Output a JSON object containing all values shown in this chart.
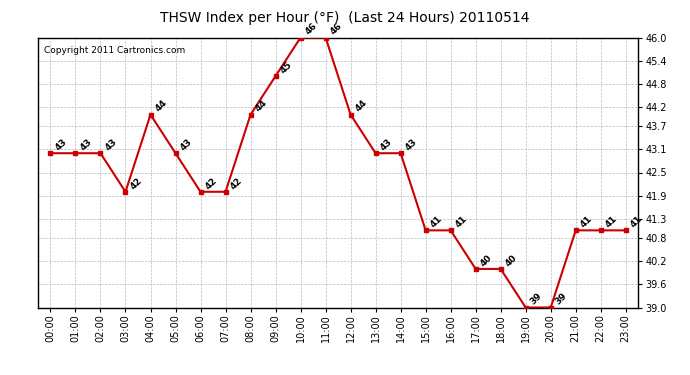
{
  "title": "THSW Index per Hour (°F)  (Last 24 Hours) 20110514",
  "copyright_text": "Copyright 2011 Cartronics.com",
  "hours": [
    "00:00",
    "01:00",
    "02:00",
    "03:00",
    "04:00",
    "05:00",
    "06:00",
    "07:00",
    "08:00",
    "09:00",
    "10:00",
    "11:00",
    "12:00",
    "13:00",
    "14:00",
    "15:00",
    "16:00",
    "17:00",
    "18:00",
    "19:00",
    "20:00",
    "21:00",
    "22:00",
    "23:00"
  ],
  "values": [
    43,
    43,
    43,
    42,
    44,
    43,
    42,
    42,
    44,
    45,
    46,
    46,
    44,
    43,
    43,
    41,
    41,
    40,
    40,
    39,
    39,
    41,
    41,
    41
  ],
  "line_color": "#cc0000",
  "marker_color": "#cc0000",
  "bg_color": "#ffffff",
  "plot_bg_color": "#ffffff",
  "grid_color": "#bbbbbb",
  "title_fontsize": 10,
  "label_fontsize": 6.5,
  "tick_fontsize": 7,
  "copyright_fontsize": 6.5,
  "ylim_min": 39.0,
  "ylim_max": 46.0,
  "yticks": [
    39.0,
    39.6,
    40.2,
    40.8,
    41.3,
    41.9,
    42.5,
    43.1,
    43.7,
    44.2,
    44.8,
    45.4,
    46.0
  ]
}
